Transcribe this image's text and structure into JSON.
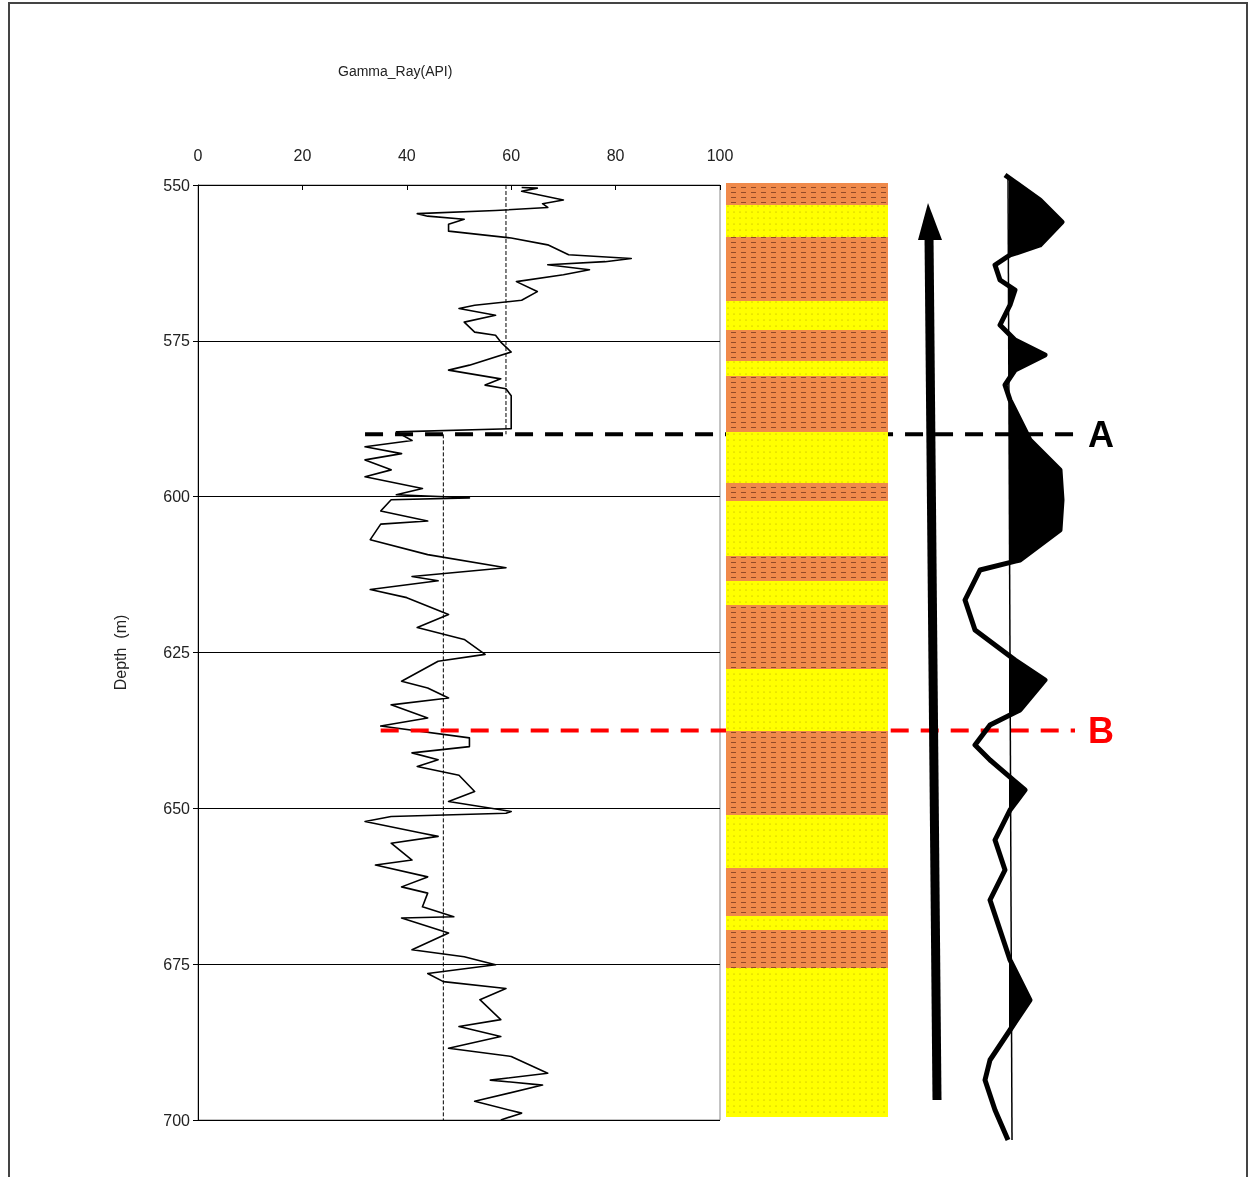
{
  "chart_data": {
    "type": "line",
    "annotations": [
      "Gamma_Ray(API)"
    ],
    "ylabel": "Depth  (m)",
    "xlim": [
      0,
      100
    ],
    "xticks": [
      0,
      20,
      40,
      60,
      80,
      100
    ],
    "ylim": [
      700,
      550
    ],
    "yticks": [
      550,
      575,
      600,
      625,
      650,
      675,
      700
    ],
    "grid": "y",
    "marker": "none",
    "series": [
      {
        "color": "#000000",
        "line_style": "solid",
        "x": [
          62,
          65,
          62,
          70,
          66,
          67,
          57,
          42,
          44,
          51,
          48,
          48,
          60,
          67,
          71,
          83,
          78,
          67,
          75,
          70,
          61,
          65,
          62,
          53,
          50,
          57,
          51,
          53,
          57,
          58,
          60,
          52,
          48,
          58,
          55,
          59,
          60,
          60,
          38,
          41,
          32,
          39,
          32,
          37,
          32,
          43,
          38,
          52,
          37,
          35,
          44,
          35,
          33,
          44,
          59,
          41,
          46,
          33,
          40,
          48,
          42,
          51,
          55,
          46,
          39,
          44,
          48,
          37,
          44,
          35,
          52,
          52,
          41,
          46,
          42,
          50,
          53,
          48,
          60,
          59,
          37,
          32,
          43,
          46,
          37,
          41,
          34,
          44,
          39,
          44,
          43,
          49,
          39,
          48,
          41,
          51,
          57,
          44,
          47,
          59,
          54,
          58,
          50,
          58,
          48,
          60,
          67,
          56,
          66,
          53,
          62,
          58
        ],
        "values": [
          550.4,
          550.5,
          551,
          552.4,
          553,
          553.6,
          554.1,
          554.6,
          555,
          555.5,
          556.3,
          557.4,
          558.5,
          559.6,
          561.2,
          561.8,
          562.3,
          562.8,
          563.6,
          564.4,
          565.5,
          567.1,
          568.5,
          569.3,
          569.8,
          570.9,
          572,
          573.6,
          574.1,
          575.2,
          576.8,
          578.9,
          579.7,
          581.1,
          582.1,
          582.7,
          583.8,
          589.1,
          589.6,
          591,
          592,
          593.1,
          594.1,
          595.7,
          596.8,
          598.7,
          599.7,
          600.2,
          600.5,
          602.3,
          603.9,
          604.4,
          606.9,
          609.3,
          611.4,
          612.8,
          613.5,
          614.9,
          616.2,
          618.9,
          621,
          622.9,
          625.3,
          626.4,
          629.6,
          630.7,
          632.3,
          633.4,
          635.5,
          636.8,
          638.7,
          640.1,
          641.1,
          642.2,
          643.3,
          644.7,
          647.3,
          648.9,
          650.5,
          650.8,
          651.3,
          652.1,
          654,
          654.5,
          655.6,
          658.3,
          659.1,
          661,
          662.6,
          663.6,
          665.8,
          667.4,
          667.6,
          670,
          672.7,
          673.8,
          675.1,
          676.5,
          677.8,
          678.9,
          680.7,
          683.9,
          685,
          686.6,
          688.5,
          689.8,
          692.5,
          693.6,
          694.4,
          697,
          698.9,
          700
        ]
      },
      {
        "color": "#000000",
        "line_style": "dashed",
        "x": [
          59,
          59
        ],
        "values": [
          550,
          590
        ]
      },
      {
        "color": "#000000",
        "line_style": "dashed",
        "x": [
          47,
          47
        ],
        "values": [
          590,
          700
        ]
      }
    ],
    "ref_lines": [
      {
        "axis": "y",
        "value": 590,
        "label": "A",
        "color": "#000000",
        "line_style": "dashed"
      },
      {
        "axis": "y",
        "value": 637.5,
        "label": "B",
        "color": "#ff0000",
        "line_style": "dashed"
      }
    ]
  }
}
